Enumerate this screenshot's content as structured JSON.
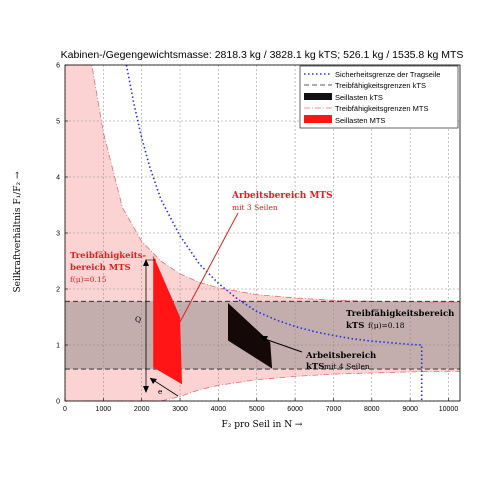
{
  "chart_data": {
    "type": "area",
    "title": "Kabinen-/Gegengewichtsmasse: 2818.3 kg / 3828.1 kg kTS; 526.1 kg / 1535.8 kg MTS",
    "xlabel": "F₂ pro Seil in N  →",
    "ylabel": "Seilkraftverhältnis F₁/F₂  →",
    "xlim": [
      0,
      10300
    ],
    "ylim": [
      0,
      6
    ],
    "xticks": [
      "0",
      "1000",
      "2000",
      "3000",
      "4000",
      "5000",
      "6000",
      "7000",
      "8000",
      "9000",
      "10000"
    ],
    "yticks": [
      "0",
      "1",
      "2",
      "3",
      "4",
      "5",
      "6"
    ],
    "grid": true,
    "legend_position": "top-right",
    "legend": [
      {
        "label": "Sicherheitsgrenze der Tragseile",
        "style": "blue-dotted"
      },
      {
        "label": "Treibfähigkeitsgrenzen kTS",
        "style": "black-dashed"
      },
      {
        "label": "Seillasten kTS",
        "style": "black-fill"
      },
      {
        "label": "Treibfähigkeitsgrenzen MTS",
        "style": "pink-dashdot"
      },
      {
        "label": "Seillasten MTS",
        "style": "red-fill"
      }
    ],
    "series": [
      {
        "name": "Sicherheitsgrenze der Tragseile",
        "x": [
          1600,
          1800,
          2000,
          2200,
          2500,
          3000,
          3500,
          4000,
          4500,
          5000,
          5500,
          6000,
          6500,
          7000,
          7500,
          8000,
          8500,
          9000,
          9300,
          9300
        ],
        "y": [
          6.0,
          5.3,
          4.7,
          4.2,
          3.6,
          2.95,
          2.45,
          2.1,
          1.82,
          1.6,
          1.45,
          1.33,
          1.24,
          1.17,
          1.11,
          1.07,
          1.04,
          1.01,
          1.0,
          0
        ]
      },
      {
        "name": "Treibfähigkeitsgrenzen kTS",
        "upper": 1.78,
        "lower": 0.57
      },
      {
        "name": "Seillasten kTS",
        "polygon": [
          [
            4250,
            1.75
          ],
          [
            5350,
            1.05
          ],
          [
            5400,
            0.58
          ],
          [
            4250,
            1.08
          ]
        ]
      },
      {
        "name": "Treibfähigkeitsgrenzen MTS",
        "x": [
          500,
          700,
          1000,
          1500,
          2000,
          2500,
          3000,
          3500,
          4000,
          5000,
          6000,
          7000,
          8000,
          9000,
          10000,
          10300
        ],
        "upper": [
          6.0,
          6.0,
          4.8,
          3.45,
          2.85,
          2.5,
          2.27,
          2.12,
          2.02,
          1.9,
          1.84,
          1.8,
          1.78,
          1.77,
          1.76,
          1.76
        ],
        "lower": [
          0,
          0,
          0,
          0,
          0,
          0,
          0.08,
          0.2,
          0.28,
          0.38,
          0.44,
          0.48,
          0.5,
          0.52,
          0.53,
          0.53
        ]
      },
      {
        "name": "Seillasten MTS",
        "polygon": [
          [
            2300,
            2.6
          ],
          [
            3000,
            1.5
          ],
          [
            3050,
            0.3
          ],
          [
            2300,
            0.6
          ]
        ]
      }
    ],
    "annotations": [
      {
        "text": "Arbeitsbereich MTS",
        "sub": "mit 3 Seilen",
        "color": "red"
      },
      {
        "text": "Treibfähigkeits-",
        "sub": "bereich MTS",
        "extra": "f(μ)=0.15",
        "color": "red"
      },
      {
        "text": "Treibfähigkeitsbereich",
        "sub": "kTS",
        "extra": "f(μ)=0.18",
        "color": "black"
      },
      {
        "text": "Arbeitsbereich",
        "sub": "kTS",
        "extra": "mit 4 Seilen",
        "color": "black"
      },
      {
        "text": "Q",
        "color": "black"
      },
      {
        "text": "e",
        "color": "black"
      }
    ]
  }
}
